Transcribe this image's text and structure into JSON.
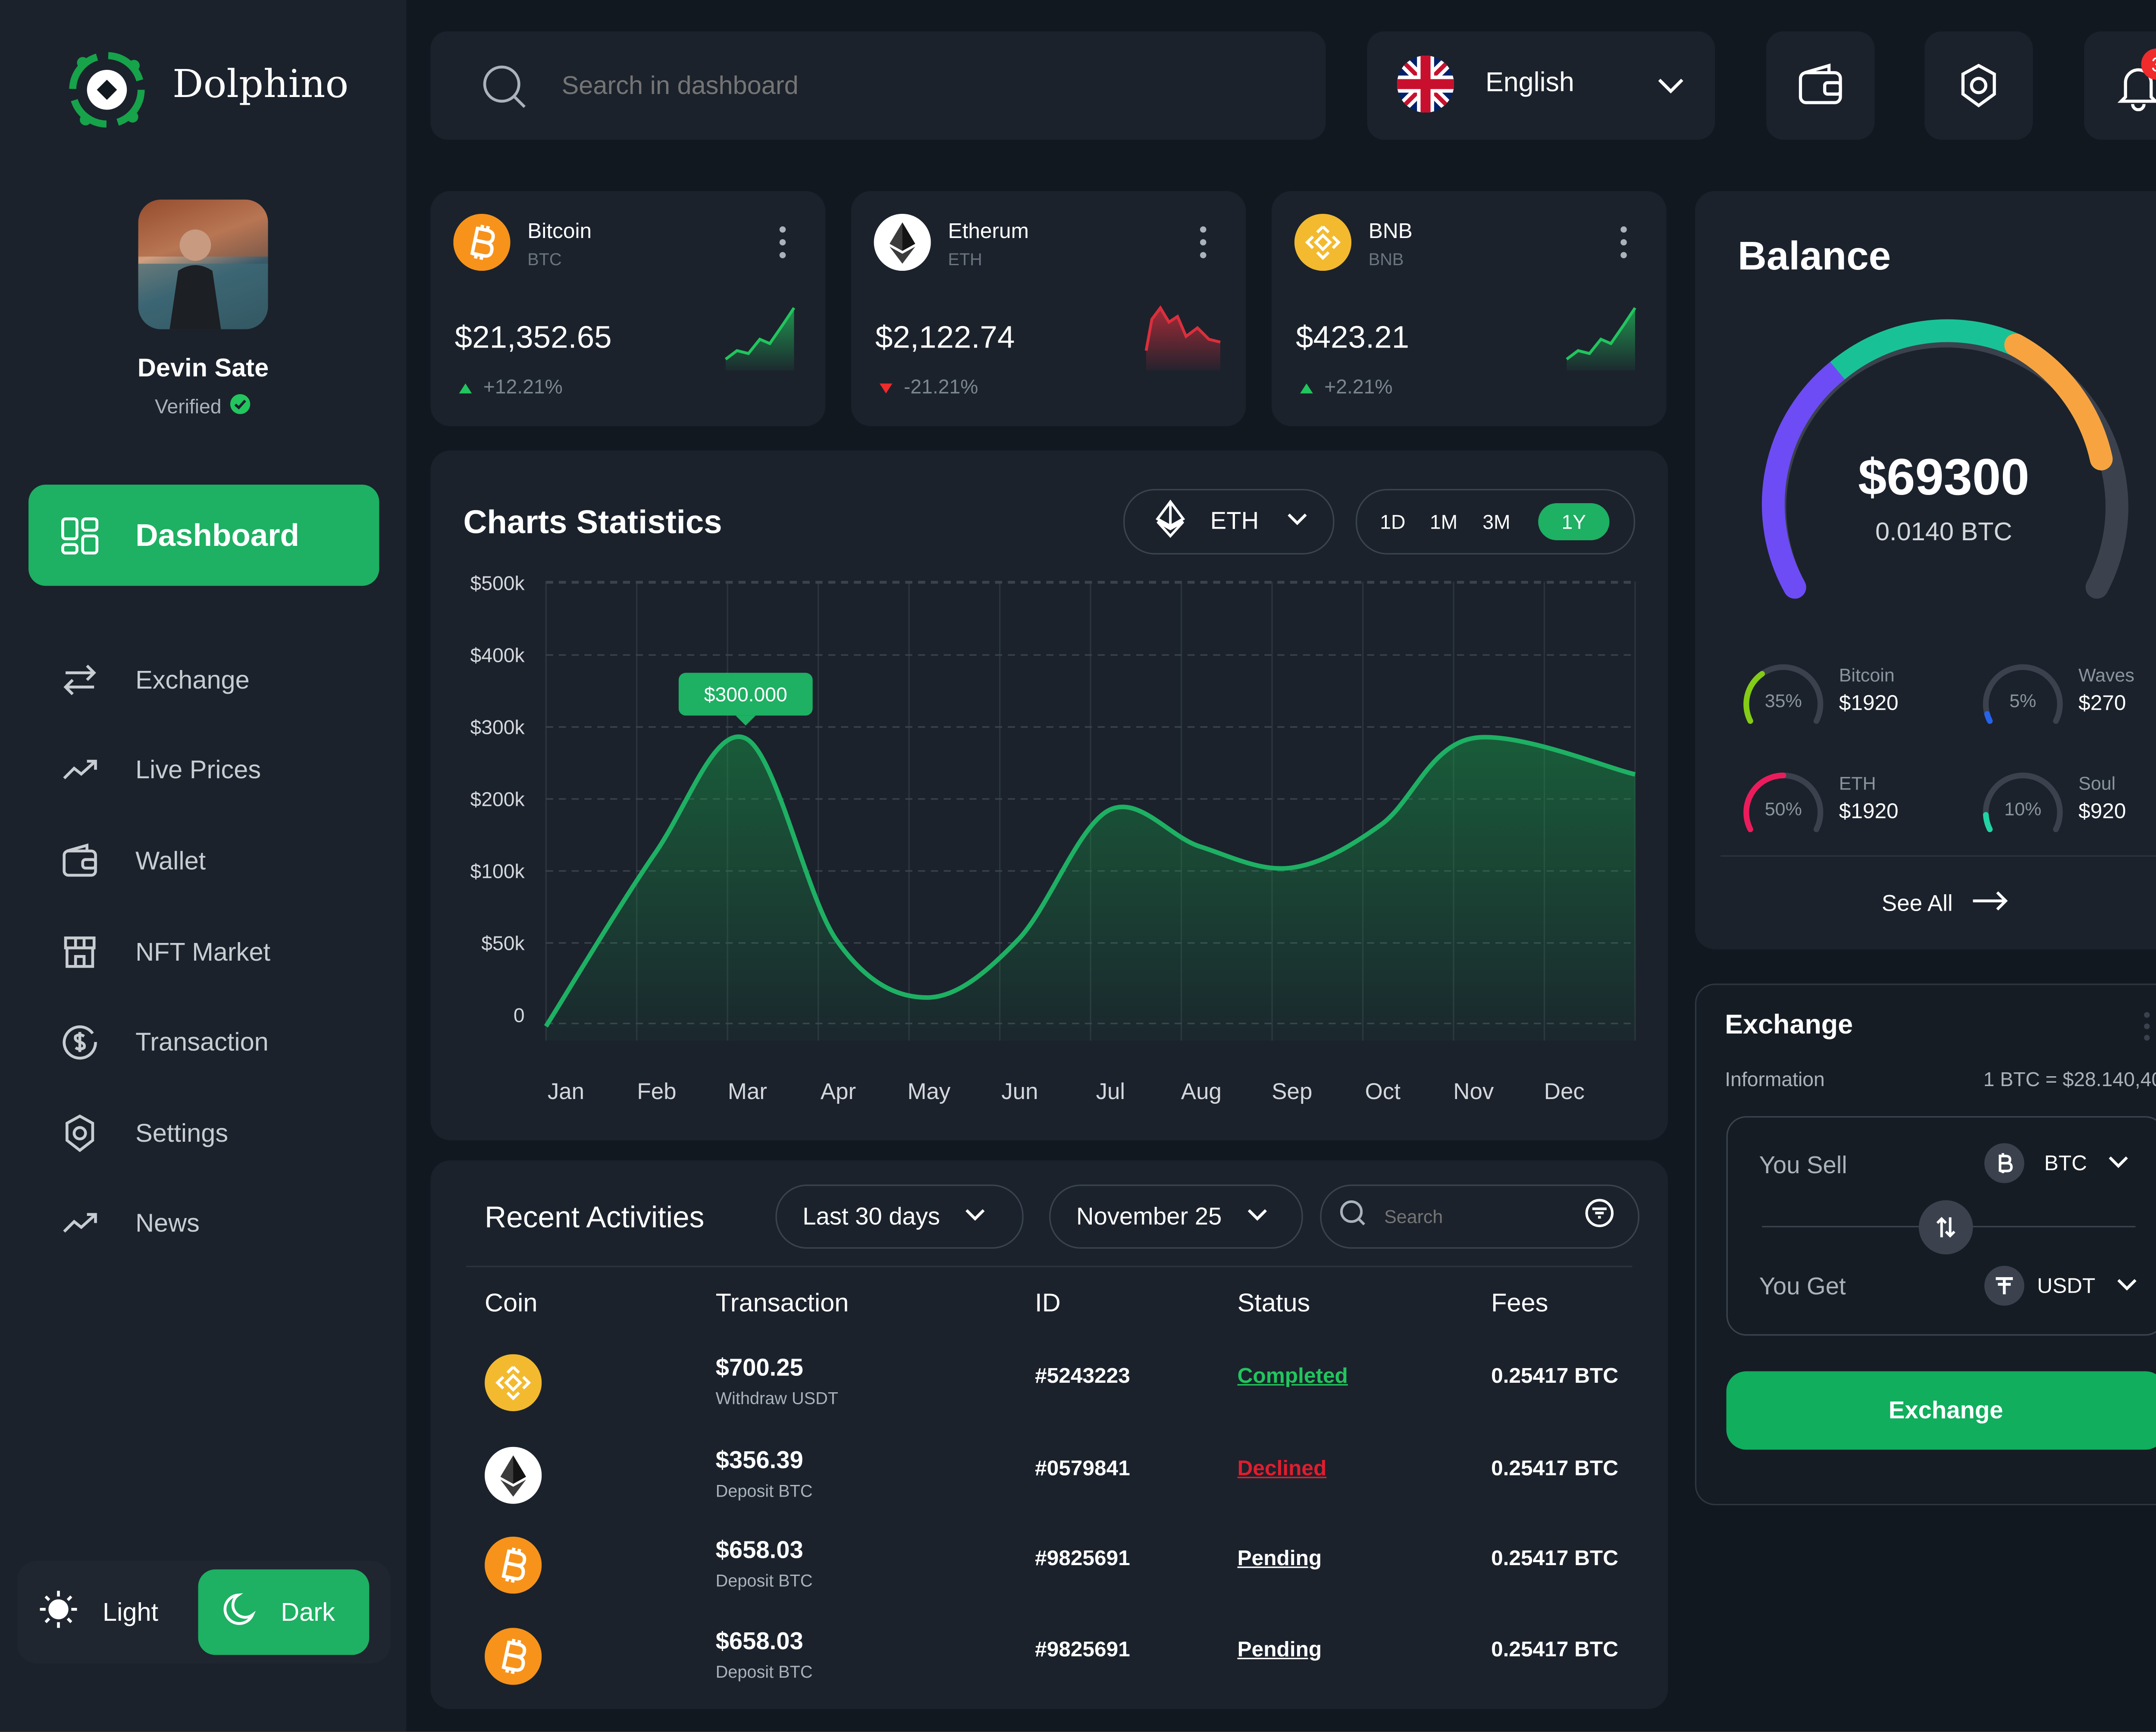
{
  "brand": {
    "name": "Dolphino"
  },
  "profile": {
    "name": "Devin Sate",
    "status": "Verified"
  },
  "nav": {
    "active": "Dashboard",
    "items": [
      "Exchange",
      "Live Prices",
      "Wallet",
      "NFT Market",
      "Transaction",
      "Settings",
      "News"
    ]
  },
  "theme": {
    "light_label": "Light",
    "dark_label": "Dark",
    "selected": "Dark"
  },
  "header": {
    "search_placeholder": "Search in dashboard",
    "language": "English",
    "notification_count": "3"
  },
  "coins": [
    {
      "name": "Bitcoin",
      "symbol": "BTC",
      "price": "$21,352.65",
      "change": "+12.21%",
      "trend": "up",
      "color": "#f7931a"
    },
    {
      "name": "Etherum",
      "symbol": "ETH",
      "price": "$2,122.74",
      "change": "-21.21%",
      "trend": "down",
      "color": "#ffffff"
    },
    {
      "name": "BNB",
      "symbol": "BNB",
      "price": "$423.21",
      "change": "+2.21%",
      "trend": "up",
      "color": "#f3ba2f"
    }
  ],
  "chart_card": {
    "title": "Charts Statistics",
    "asset": "ETH",
    "ranges": [
      "1D",
      "1M",
      "3M",
      "1Y"
    ],
    "selected_range": "1Y"
  },
  "chart_data": {
    "type": "area",
    "categories": [
      "Jan",
      "Feb",
      "Mar",
      "Apr",
      "May",
      "Jun",
      "Jul",
      "Aug",
      "Sep",
      "Oct",
      "Nov",
      "Dec"
    ],
    "y_ticks": [
      "0",
      "$50k",
      "$100k",
      "$200k",
      "$300k",
      "$400k",
      "$500k"
    ],
    "series": [
      {
        "values": [
          0,
          140,
          300,
          60,
          20,
          60,
          200,
          150,
          120,
          180,
          300,
          250
        ]
      }
    ],
    "annotation": {
      "label": "$300.000",
      "category": "Mar"
    },
    "grid": true
  },
  "activities": {
    "title": "Recent Activities",
    "period": "Last 30 days",
    "date": "November 25",
    "search_placeholder": "Search",
    "columns": [
      "Coin",
      "Transaction",
      "ID",
      "Status",
      "Fees"
    ],
    "rows": [
      {
        "coin": "BNB",
        "amount": "$700.25",
        "type": "Withdraw USDT",
        "id": "#5243223",
        "status": "Completed",
        "status_color": "#22c55e",
        "fees": "0.25417 BTC"
      },
      {
        "coin": "ETH",
        "amount": "$356.39",
        "type": "Deposit BTC",
        "id": "#0579841",
        "status": "Declined",
        "status_color": "#e11d2e",
        "fees": "0.25417 BTC"
      },
      {
        "coin": "BTC",
        "amount": "$658.03",
        "type": "Deposit BTC",
        "id": "#9825691",
        "status": "Pending",
        "status_color": "#ffffff",
        "fees": "0.25417 BTC"
      },
      {
        "coin": "BTC",
        "amount": "$658.03",
        "type": "Deposit BTC",
        "id": "#9825691",
        "status": "Pending",
        "status_color": "#ffffff",
        "fees": "0.25417 BTC"
      }
    ]
  },
  "balance": {
    "title": "Balance",
    "amount": "$69300",
    "btc": "0.0140 BTC",
    "see_all": "See All",
    "assets": [
      {
        "name": "Bitcoin",
        "value": "$1920",
        "percent": "35%",
        "fraction": 0.35,
        "color": "#84cc16"
      },
      {
        "name": "Waves",
        "value": "$270",
        "percent": "5%",
        "fraction": 0.05,
        "color": "#2563eb"
      },
      {
        "name": "ETH",
        "value": "$1920",
        "percent": "50%",
        "fraction": 0.5,
        "color": "#ec1c5c"
      },
      {
        "name": "Soul",
        "value": "$920",
        "percent": "10%",
        "fraction": 0.1,
        "color": "#22d3a3"
      }
    ]
  },
  "exchange": {
    "title": "Exchange",
    "info_label": "Information",
    "rate": "1 BTC = $28.140,40",
    "sell_label": "You Sell",
    "sell_asset": "BTC",
    "get_label": "You Get",
    "get_asset": "USDT",
    "button": "Exchange"
  }
}
